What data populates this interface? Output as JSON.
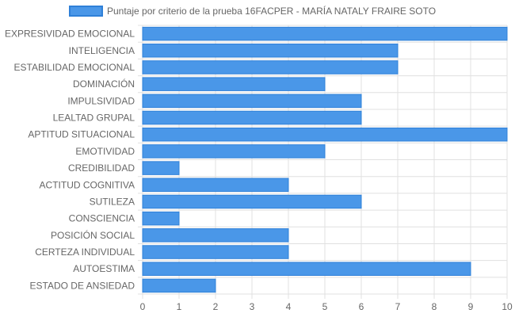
{
  "chart_data": {
    "type": "bar",
    "orientation": "horizontal",
    "categories": [
      "EXPRESIVIDAD EMOCIONAL",
      "INTELIGENCIA",
      "ESTABILIDAD EMOCIONAL",
      "DOMINACIÓN",
      "IMPULSIVIDAD",
      "LEALTAD GRUPAL",
      "APTITUD SITUACIONAL",
      "EMOTIVIDAD",
      "CREDIBILIDAD",
      "ACTITUD COGNITIVA",
      "SUTILEZA",
      "CONSCIENCIA",
      "POSICIÓN SOCIAL",
      "CERTEZA INDIVIDUAL",
      "AUTOESTIMA",
      "ESTADO DE ANSIEDAD"
    ],
    "series": [
      {
        "name": "Puntaje por criterio de la prueba 16FACPER - MARÍA NATALY FRAIRE SOTO",
        "values": [
          10,
          7,
          7,
          5,
          6,
          6,
          10,
          5,
          1,
          4,
          6,
          1,
          4,
          4,
          9,
          2
        ]
      }
    ],
    "xlim": [
      0,
      10
    ],
    "xticks": [
      "0",
      "1",
      "2",
      "3",
      "4",
      "5",
      "6",
      "7",
      "8",
      "9",
      "10"
    ],
    "grid": true,
    "legend_position": "top",
    "colors": {
      "bar_fill": "#4a97e8",
      "bar_stroke": "#2f80d8",
      "grid": "#e0e0e0",
      "text": "#666666"
    }
  }
}
